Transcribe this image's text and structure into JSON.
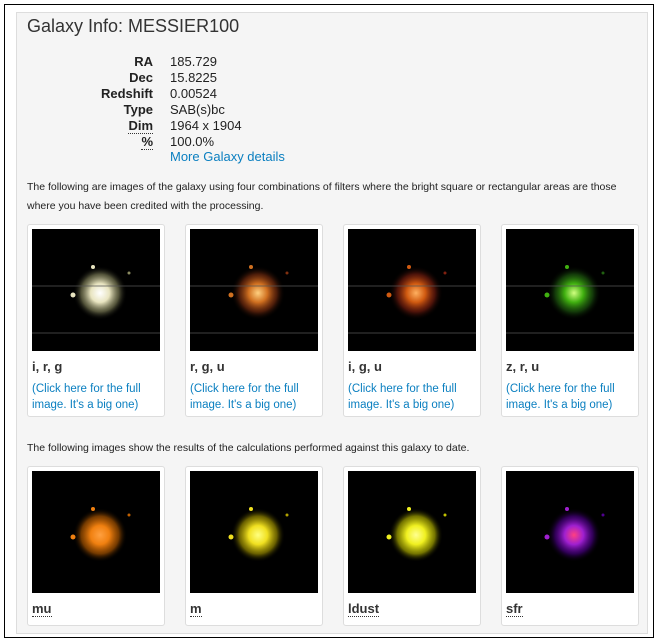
{
  "header": {
    "title": "Galaxy Info: MESSIER100"
  },
  "info": [
    {
      "label": "RA",
      "value": "185.729"
    },
    {
      "label": "Dec",
      "value": "15.8225"
    },
    {
      "label": "Redshift",
      "value": "0.00524"
    },
    {
      "label": "Type",
      "value": "SAB(s)bc"
    },
    {
      "label": "Dim",
      "value": "1964 x 1904"
    },
    {
      "label": "%",
      "value": "100.0%"
    }
  ],
  "more_link": "More Galaxy details",
  "intro_filters": "The following are images of the galaxy using four combinations of filters where the bright square or rectangular areas are those where you have been credited with the processing.",
  "filter_cards": [
    {
      "caption": "i, r, g",
      "link": "(Click here for the full image. It's a big one)"
    },
    {
      "caption": "r, g, u",
      "link": "(Click here for the full image. It's a big one)"
    },
    {
      "caption": "i, g, u",
      "link": "(Click here for the full image. It's a big one)"
    },
    {
      "caption": "z, r, u",
      "link": "(Click here for the full image. It's a big one)"
    }
  ],
  "intro_results": "The following images show the results of the calculations performed against this galaxy to date.",
  "result_cards": [
    {
      "caption": "mu"
    },
    {
      "caption": "m"
    },
    {
      "caption": "ldust"
    },
    {
      "caption": "sfr"
    }
  ]
}
